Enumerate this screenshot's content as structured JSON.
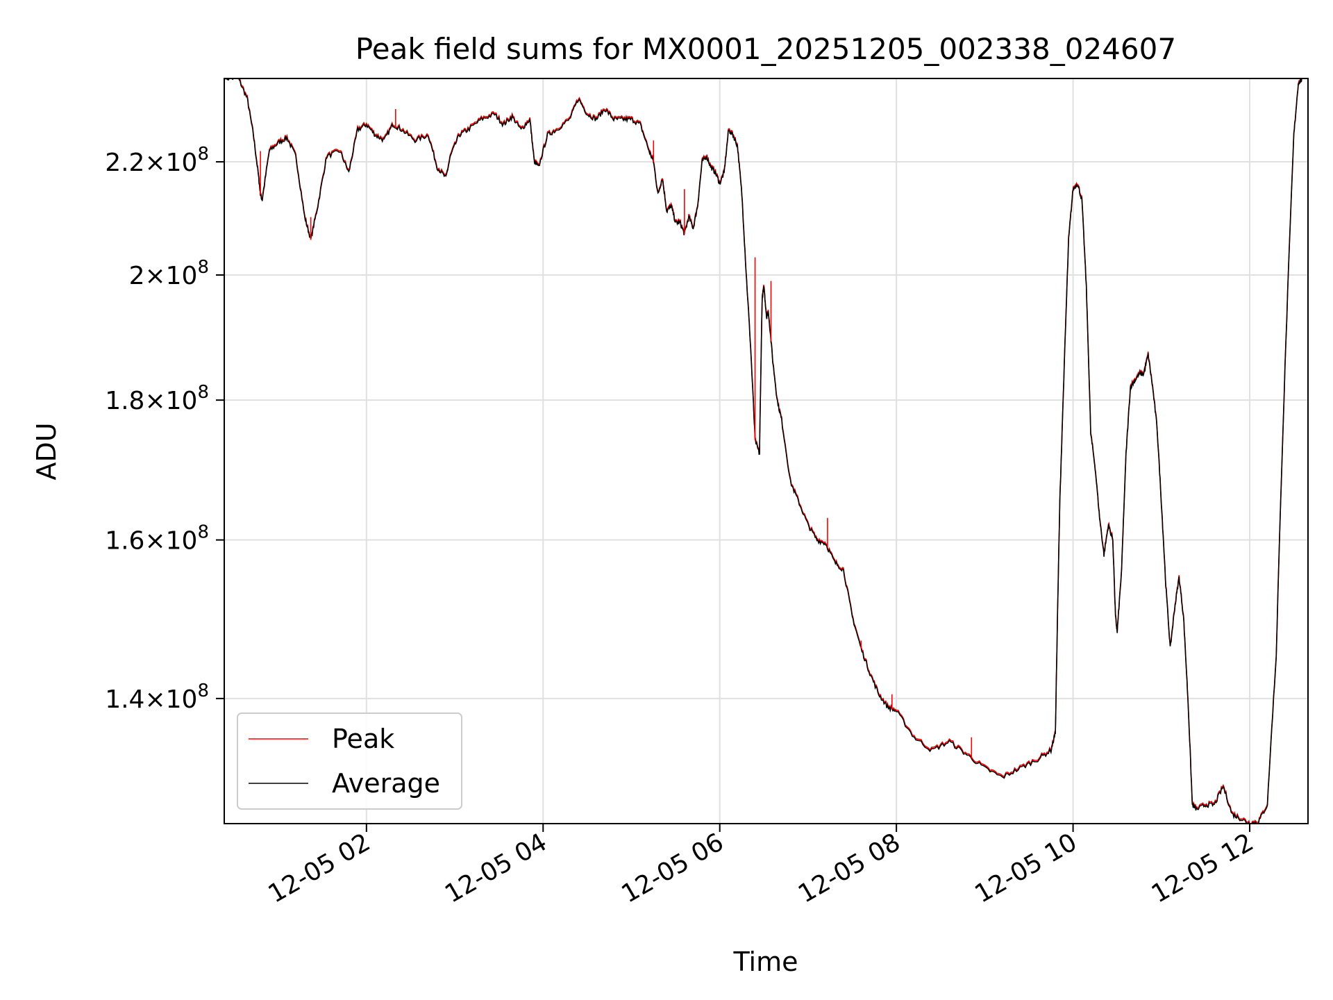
{
  "chart_data": {
    "type": "line",
    "title": "Peak field sums for MX0001_20251205_002338_024607",
    "xlabel": "Time",
    "ylabel": "ADU",
    "y_scale": "log",
    "xlim_hours": [
      0.39,
      12.66
    ],
    "ylim": [
      126000000,
      236000000
    ],
    "grid": true,
    "legend_location": "lower left",
    "x_ticks": [
      {
        "hour": 2,
        "label": "12-05 02"
      },
      {
        "hour": 4,
        "label": "12-05 04"
      },
      {
        "hour": 6,
        "label": "12-05 06"
      },
      {
        "hour": 8,
        "label": "12-05 08"
      },
      {
        "hour": 10,
        "label": "12-05 10"
      },
      {
        "hour": 12,
        "label": "12-05 12"
      }
    ],
    "y_ticks": [
      {
        "value": 140000000,
        "mantissa": "1.4",
        "exponent": "8"
      },
      {
        "value": 160000000,
        "mantissa": "1.6",
        "exponent": "8"
      },
      {
        "value": 180000000,
        "mantissa": "1.8",
        "exponent": "8"
      },
      {
        "value": 200000000,
        "mantissa": "2",
        "exponent": "8"
      },
      {
        "value": 220000000,
        "mantissa": "2.2",
        "exponent": "8"
      }
    ],
    "series": [
      {
        "name": "Average",
        "color": "#000000",
        "x_hours": [
          0.39,
          0.55,
          0.65,
          0.72,
          0.78,
          0.8,
          0.82,
          0.9,
          1.0,
          1.1,
          1.2,
          1.3,
          1.37,
          1.45,
          1.55,
          1.7,
          1.8,
          1.9,
          2.0,
          2.1,
          2.2,
          2.3,
          2.4,
          2.55,
          2.7,
          2.8,
          2.9,
          2.95,
          3.05,
          3.15,
          3.3,
          3.45,
          3.55,
          3.65,
          3.75,
          3.85,
          3.9,
          3.95,
          4.05,
          4.15,
          4.3,
          4.4,
          4.5,
          4.6,
          4.7,
          4.8,
          4.9,
          5.0,
          5.1,
          5.2,
          5.25,
          5.3,
          5.35,
          5.4,
          5.45,
          5.5,
          5.55,
          5.6,
          5.65,
          5.7,
          5.75,
          5.8,
          5.85,
          5.9,
          5.95,
          6.0,
          6.05,
          6.1,
          6.15,
          6.2,
          6.25,
          6.3,
          6.35,
          6.4,
          6.45,
          6.48,
          6.5,
          6.53,
          6.55,
          6.6,
          6.65,
          6.7,
          6.8,
          6.9,
          7.0,
          7.1,
          7.2,
          7.3,
          7.4,
          7.5,
          7.6,
          7.7,
          7.8,
          7.9,
          8.0,
          8.2,
          8.4,
          8.6,
          8.8,
          9.0,
          9.2,
          9.4,
          9.6,
          9.75,
          9.8,
          9.85,
          9.9,
          9.95,
          10.0,
          10.05,
          10.1,
          10.15,
          10.2,
          10.25,
          10.3,
          10.35,
          10.4,
          10.45,
          10.48,
          10.5,
          10.55,
          10.6,
          10.65,
          10.7,
          10.75,
          10.8,
          10.85,
          10.9,
          10.95,
          11.0,
          11.05,
          11.1,
          11.15,
          11.2,
          11.25,
          11.3,
          11.35,
          11.4,
          11.5,
          11.6,
          11.7,
          11.8,
          11.9,
          12.0,
          12.1,
          12.2,
          12.3,
          12.4,
          12.5,
          12.55,
          12.6
        ],
        "values": [
          236000000.0,
          236000000.0,
          232000000.0,
          225000000.0,
          217000000.0,
          214000000.0,
          213000000.0,
          222000000.0,
          223500000.0,
          224500000.0,
          221000000.0,
          210000000.0,
          206000000.0,
          212000000.0,
          221000000.0,
          222000000.0,
          218000000.0,
          226000000.0,
          227000000.0,
          225000000.0,
          224000000.0,
          227000000.0,
          226000000.0,
          224000000.0,
          225000000.0,
          219000000.0,
          217000000.0,
          221000000.0,
          225000000.0,
          226000000.0,
          228000000.0,
          229000000.0,
          227000000.0,
          228500000.0,
          226000000.0,
          228000000.0,
          220000000.0,
          219000000.0,
          225000000.0,
          226000000.0,
          228000000.0,
          232000000.0,
          229000000.0,
          228000000.0,
          230000000.0,
          228000000.0,
          228000000.0,
          228000000.0,
          227000000.0,
          222000000.0,
          220000000.0,
          214000000.0,
          217000000.0,
          211000000.0,
          212000000.0,
          209000000.0,
          209000000.0,
          207000000.0,
          210000000.0,
          208000000.0,
          212000000.0,
          220000000.0,
          221000000.0,
          219000000.0,
          218000000.0,
          216000000.0,
          218000000.0,
          226000000.0,
          225000000.0,
          223000000.0,
          214000000.0,
          200000000.0,
          188000000.0,
          174000000.0,
          172000000.0,
          196000000.0,
          198000000.0,
          193000000.0,
          194000000.0,
          186000000.0,
          180000000.0,
          177000000.0,
          168000000.0,
          165000000.0,
          162000000.0,
          160000000.0,
          159500000.0,
          157000000.0,
          156000000.0,
          150000000.0,
          146000000.0,
          143000000.0,
          140500000.0,
          139000000.0,
          138500000.0,
          135500000.0,
          134000000.0,
          135000000.0,
          133500000.0,
          132000000.0,
          131000000.0,
          132000000.0,
          133000000.0,
          134000000.0,
          136000000.0,
          165000000.0,
          185000000.0,
          206000000.0,
          215000000.0,
          216000000.0,
          213000000.0,
          198000000.0,
          175000000.0,
          170000000.0,
          163000000.0,
          158000000.0,
          162000000.0,
          160000000.0,
          150000000.0,
          148000000.0,
          156000000.0,
          172000000.0,
          182000000.0,
          183000000.0,
          184000000.0,
          184000000.0,
          187000000.0,
          182000000.0,
          176000000.0,
          165000000.0,
          154000000.0,
          146000000.0,
          151000000.0,
          155000000.0,
          150000000.0,
          140000000.0,
          128000000.0,
          127500000.0,
          128000000.0,
          128000000.0,
          130000000.0,
          127000000.0,
          126500000.0,
          126000000.0,
          126200000.0,
          128000000.0,
          145000000.0,
          185000000.0,
          225000000.0,
          235000000.0,
          236000000.0
        ]
      },
      {
        "name": "Peak",
        "color": "#ff0000",
        "spikes": [
          {
            "hour": 0.8,
            "value": 222000000
          },
          {
            "hour": 1.37,
            "value": 210000000
          },
          {
            "hour": 2.33,
            "value": 230000000
          },
          {
            "hour": 5.25,
            "value": 224000000
          },
          {
            "hour": 5.6,
            "value": 215000000
          },
          {
            "hour": 6.4,
            "value": 203000000
          },
          {
            "hour": 6.58,
            "value": 199000000
          },
          {
            "hour": 7.22,
            "value": 163000000
          },
          {
            "hour": 7.6,
            "value": 147000000
          },
          {
            "hour": 7.95,
            "value": 140500000
          },
          {
            "hour": 8.85,
            "value": 135500000
          }
        ]
      }
    ]
  }
}
